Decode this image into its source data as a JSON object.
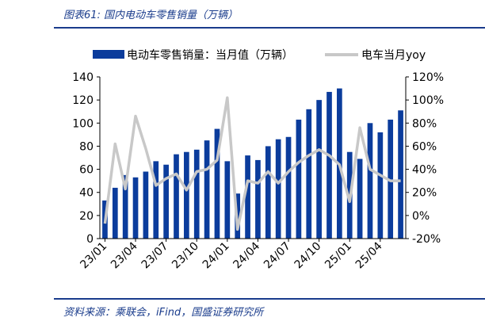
{
  "title": "图表61: 国内电动车零售销量（万辆）",
  "source": "资料来源：乘联会，iFind，国盛证券研究所",
  "colors": {
    "bar": "#0b3c9c",
    "line": "#c8c8c8",
    "accent": "#1a3c8c"
  },
  "chart_data": {
    "type": "bar",
    "x": [
      "23/01",
      "23/02",
      "23/03",
      "23/04",
      "23/05",
      "23/06",
      "23/07",
      "23/08",
      "23/09",
      "23/10",
      "23/11",
      "23/12",
      "24/01",
      "24/02",
      "24/03",
      "24/04",
      "24/05",
      "24/06",
      "24/07",
      "24/08",
      "24/09",
      "24/10",
      "24/11",
      "24/12",
      "25/01",
      "25/02",
      "25/03",
      "25/04",
      "25/05",
      "25/06"
    ],
    "x_tick_labels": [
      "23/01",
      "23/04",
      "23/07",
      "23/10",
      "24/01",
      "24/04",
      "24/07",
      "24/10",
      "25/01",
      "25/04"
    ],
    "series": [
      {
        "name": "电动车零售销量：当月值（万辆）",
        "type": "bar",
        "axis": "left",
        "values": [
          33,
          44,
          55,
          53,
          58,
          67,
          64,
          73,
          75,
          77,
          85,
          95,
          67,
          39,
          72,
          68,
          80,
          86,
          88,
          103,
          112,
          120,
          127,
          130,
          75,
          69,
          100,
          92,
          103,
          111
        ]
      },
      {
        "name": "电车当月yoy",
        "type": "line",
        "axis": "right",
        "values": [
          -7,
          62,
          23,
          86,
          58,
          26,
          32,
          36,
          22,
          38,
          40,
          48,
          102,
          -12,
          30,
          28,
          38,
          28,
          38,
          46,
          52,
          57,
          52,
          44,
          12,
          76,
          40,
          35,
          30,
          30
        ]
      }
    ],
    "y_left": {
      "min": 0,
      "max": 140,
      "ticks": [
        0,
        20,
        40,
        60,
        80,
        100,
        120,
        140
      ]
    },
    "y_right": {
      "min": -20,
      "max": 120,
      "ticks": [
        "-20%",
        "0%",
        "20%",
        "40%",
        "60%",
        "80%",
        "100%",
        "120%"
      ]
    },
    "legend": "top"
  }
}
